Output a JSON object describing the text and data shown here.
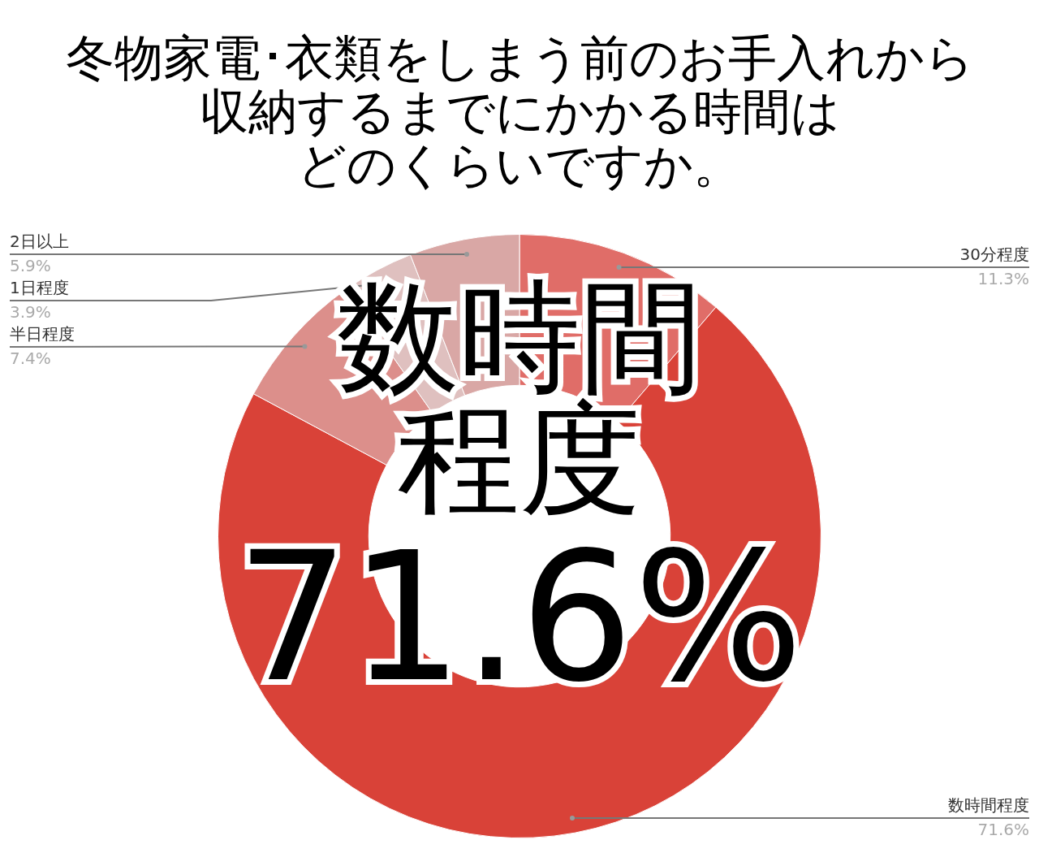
{
  "chart_data": {
    "type": "donut",
    "title": "冬物家電･衣類をしまう前のお手入れから",
    "subtitle": "収納するまでにかかる時間はどのくらいですか。",
    "categories": [
      "30分程度",
      "数時間程度",
      "半日程度",
      "1日程度",
      "2日以上"
    ],
    "values": [
      11.3,
      71.6,
      7.4,
      3.9,
      5.9
    ],
    "value_labels": [
      "11.3%",
      "71.6%",
      "7.4%",
      "3.9%",
      "5.9%"
    ],
    "colors": [
      "#e06d68",
      "#d94238",
      "#dc8f8b",
      "#dfc0bf",
      "#d9a7a5"
    ],
    "annotations": [
      "数時間程度",
      "71.6%"
    ],
    "legend": false
  }
}
